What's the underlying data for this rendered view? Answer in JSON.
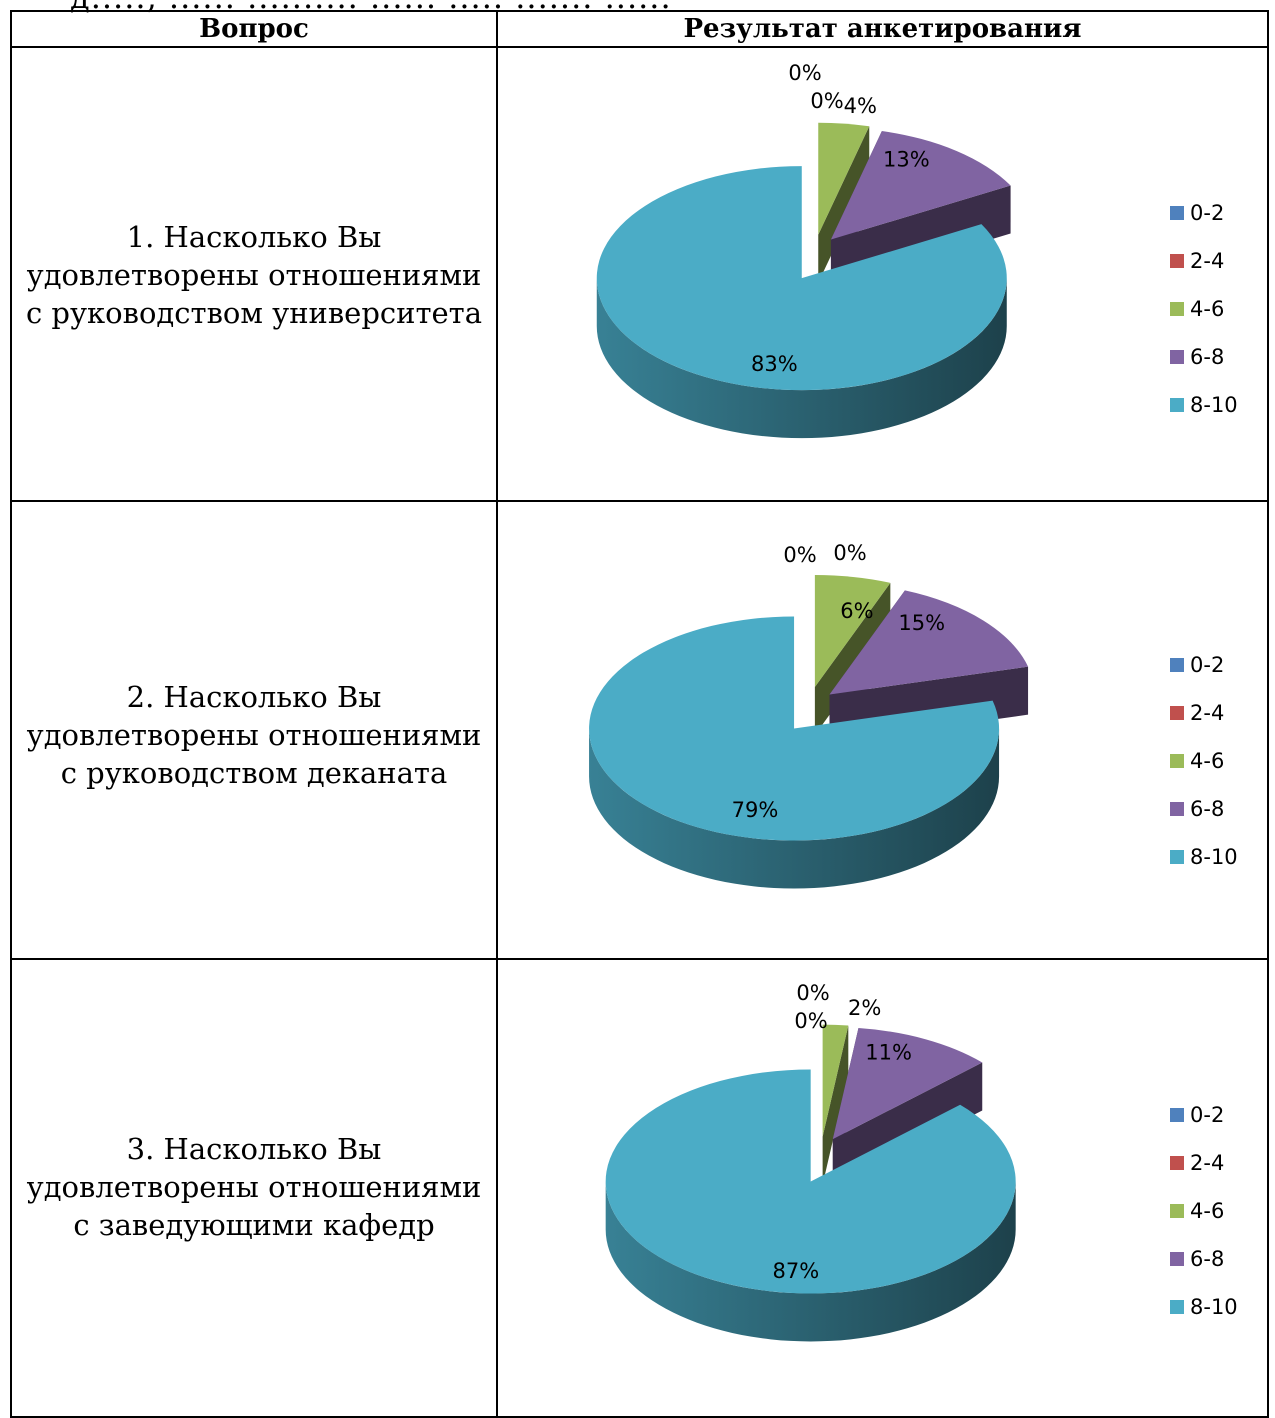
{
  "table": {
    "header": {
      "question": "Вопрос",
      "result": "Результат анкетирования"
    },
    "rows": [
      {
        "question": "1. Насколько Вы удовлетворены отношениями с руководством университета"
      },
      {
        "question": "2. Насколько Вы удовлетворены отношениями с руководством деканата"
      },
      {
        "question": "3. Насколько Вы удовлетворены отношениями с заведующими кафедр"
      }
    ]
  },
  "chart_data": [
    {
      "type": "pie",
      "style": "3d-exploded",
      "categories": [
        "0-2",
        "2-4",
        "4-6",
        "6-8",
        "8-10"
      ],
      "values": [
        0,
        0,
        4,
        13,
        83
      ],
      "labels": [
        "0%",
        "0%",
        "4%",
        "13%",
        "83%"
      ],
      "colors": [
        "#4f81bd",
        "#c0504d",
        "#9bbb59",
        "#8064a2",
        "#4bacc6"
      ],
      "legend": "right"
    },
    {
      "type": "pie",
      "style": "3d-exploded",
      "categories": [
        "0-2",
        "2-4",
        "4-6",
        "6-8",
        "8-10"
      ],
      "values": [
        0,
        0,
        6,
        15,
        79
      ],
      "labels": [
        "0%",
        "0%",
        "6%",
        "15%",
        "79%"
      ],
      "colors": [
        "#4f81bd",
        "#c0504d",
        "#9bbb59",
        "#8064a2",
        "#4bacc6"
      ],
      "legend": "right"
    },
    {
      "type": "pie",
      "style": "3d-exploded",
      "categories": [
        "0-2",
        "2-4",
        "4-6",
        "6-8",
        "8-10"
      ],
      "values": [
        0,
        0,
        2,
        11,
        87
      ],
      "labels": [
        "0%",
        "0%",
        "2%",
        "11%",
        "87%"
      ],
      "colors": [
        "#4f81bd",
        "#c0504d",
        "#9bbb59",
        "#8064a2",
        "#4bacc6"
      ],
      "legend": "right"
    }
  ]
}
